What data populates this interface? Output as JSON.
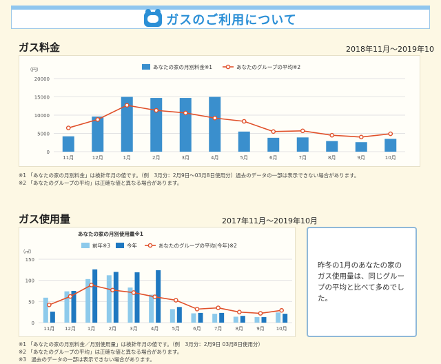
{
  "banner": {
    "title": "ガスのご利用について",
    "icon": "mascot-icon"
  },
  "fee_section": {
    "title": "ガス料金",
    "period": "2018年11月〜2019年10月",
    "notes": [
      "※1 「あなたの家の月別料金」は検針年月の値です。（例　3月分：2月9日〜03月8日使用分）過去のデータの一部は表示できない場合があります。",
      "※2 「あなたのグループの平均」は正確な値と異なる場合があります。"
    ]
  },
  "usage_section": {
    "title": "ガス使用量",
    "period": "2017年11月〜2019年10月",
    "notes": [
      "※1 「あなたの家の月別料金／月別使用量」は検針年月の値です。（例　3月分：2月9日 03月8日使用分）",
      "※2 「あなたのグループの平均」は正確な値と異なる場合があります。",
      "※3　過去のデータの一部は表示できない場合があります。"
    ],
    "message": "昨冬の1月のあなたの家のガス使用量は、同じグループの平均と比べて多めでした。"
  },
  "chart_data": [
    {
      "type": "bar",
      "unit_label": "（円）",
      "categories": [
        "11月",
        "12月",
        "1月",
        "2月",
        "3月",
        "4月",
        "5月",
        "6月",
        "7月",
        "8月",
        "9月",
        "10月"
      ],
      "ylim": [
        0,
        20000
      ],
      "yticks": [
        "20000",
        "15000",
        "10000",
        "5000",
        "0"
      ],
      "legend_position": "top",
      "grid": true,
      "series": [
        {
          "name": "あなたの家の月別料金※1",
          "kind": "bar",
          "color": "#3a8fcd",
          "values": [
            4200,
            9600,
            15000,
            14700,
            14700,
            15000,
            5500,
            3800,
            3900,
            2900,
            2600,
            3500
          ]
        },
        {
          "name": "あなたのグループの平均※2",
          "kind": "line",
          "color": "#e0502a",
          "values": [
            6500,
            8800,
            12700,
            11300,
            10600,
            9200,
            8300,
            5500,
            5700,
            4500,
            4000,
            4900
          ]
        }
      ]
    },
    {
      "type": "bar",
      "title": "あなたの家の月別使用量※1",
      "unit_label": "（㎥）",
      "categories": [
        "11月",
        "12月",
        "1月",
        "2月",
        "3月",
        "4月",
        "5月",
        "6月",
        "7月",
        "8月",
        "9月",
        "10月"
      ],
      "ylim": [
        0,
        150
      ],
      "yticks": [
        "150",
        "100",
        "50",
        "0"
      ],
      "legend_position": "top",
      "grid": true,
      "series": [
        {
          "name": "前年※3",
          "kind": "bar",
          "color": "#8dcaeb",
          "values": [
            59,
            74,
            103,
            112,
            83,
            66,
            32,
            22,
            21,
            14,
            13,
            24
          ]
        },
        {
          "name": "今年",
          "kind": "bar",
          "color": "#1f78c0",
          "values": [
            26,
            75,
            126,
            120,
            119,
            124,
            37,
            23,
            23,
            16,
            13,
            21
          ]
        },
        {
          "name": "あなたのグループの平均(今年)※2",
          "kind": "line",
          "color": "#e0502a",
          "values": [
            42,
            62,
            89,
            77,
            71,
            61,
            53,
            32,
            35,
            25,
            22,
            29
          ]
        }
      ]
    }
  ]
}
